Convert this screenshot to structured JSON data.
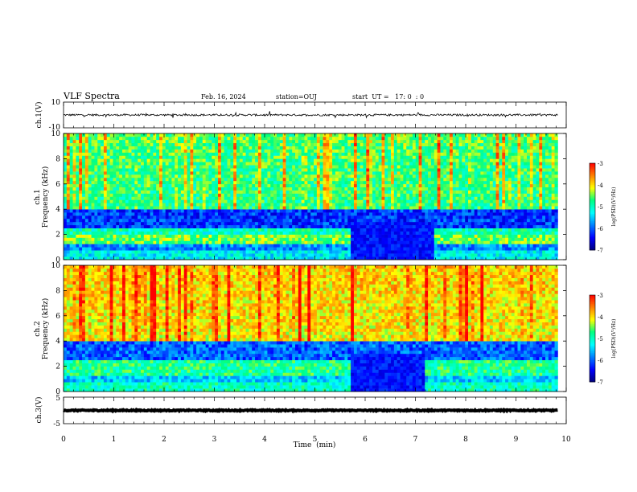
{
  "header": {
    "title": "VLF Spectra",
    "date": "Feb. 16, 2024",
    "station": "station=OUJ",
    "start": "start  UT =   17: 0  : 0"
  },
  "colors": {
    "spectrogram_colormap": [
      "#00007f",
      "#0000ff",
      "#0080ff",
      "#00ffff",
      "#00ff80",
      "#ffff00",
      "#ff8000",
      "#ff0000"
    ],
    "waveform": "#000000"
  },
  "chart_data": [
    {
      "type": "line",
      "name": "ch1-waveform",
      "ylabel": "ch.1(V)",
      "ylim": [
        -10,
        10
      ],
      "ytick_labels": [
        "10",
        "-10"
      ],
      "xlim": [
        0,
        10
      ],
      "baseline_v": 0,
      "noise_amplitude_v": 1.5,
      "end_min": 9.83
    },
    {
      "type": "heatmap",
      "name": "ch1-spectrogram",
      "ylabel": "Frequency (kHz)",
      "sublabel": "ch.1",
      "xlim": [
        0,
        10
      ],
      "ylim": [
        0,
        10
      ],
      "yticks": [
        "0",
        "2",
        "4",
        "6",
        "8",
        "10"
      ],
      "data_end_min": 9.83,
      "quiet_interval_min": [
        5.7,
        7.35
      ],
      "bands_khz": [
        {
          "from": 0,
          "to": 0.6,
          "level": -5.3
        },
        {
          "from": 0.6,
          "to": 1.2,
          "level": -5.8
        },
        {
          "from": 1.2,
          "to": 1.9,
          "level": -4.5
        },
        {
          "from": 1.9,
          "to": 2.4,
          "level": -5.0
        },
        {
          "from": 2.4,
          "to": 4.0,
          "level": -6.2
        },
        {
          "from": 4.0,
          "to": 10.0,
          "level": -4.6
        }
      ]
    },
    {
      "type": "heatmap",
      "name": "ch2-spectrogram",
      "ylabel": "Frequency (kHz)",
      "sublabel": "ch.2",
      "xlim": [
        0,
        10
      ],
      "ylim": [
        0,
        10
      ],
      "yticks": [
        "0",
        "2",
        "4",
        "6",
        "8",
        "10"
      ],
      "data_end_min": 9.83,
      "quiet_interval_min": [
        5.7,
        7.2
      ],
      "bands_khz": [
        {
          "from": 0,
          "to": 0.6,
          "level": -5.0
        },
        {
          "from": 0.6,
          "to": 1.2,
          "level": -5.5
        },
        {
          "from": 1.2,
          "to": 2.4,
          "level": -4.8
        },
        {
          "from": 2.4,
          "to": 4.0,
          "level": -6.0
        },
        {
          "from": 4.0,
          "to": 10.0,
          "level": -3.9
        }
      ]
    },
    {
      "type": "line",
      "name": "ch3-waveform",
      "ylabel": "ch.3(V)",
      "ylim": [
        -5,
        5
      ],
      "ytick_labels": [
        "5",
        "-5"
      ],
      "xlim": [
        0,
        10
      ],
      "baseline_v": 0,
      "noise_amplitude_v": 0.4,
      "end_min": 9.83
    }
  ],
  "colorbar": {
    "label": "log(PSD)(V²/Hz)",
    "ticks": [
      "-3",
      "-4",
      "-5",
      "-6",
      "-7"
    ],
    "range": [
      -7,
      -3
    ]
  },
  "xaxis": {
    "label": "Time  (min)",
    "ticks": [
      "0",
      "1",
      "2",
      "3",
      "4",
      "5",
      "6",
      "7",
      "8",
      "9",
      "10"
    ]
  }
}
